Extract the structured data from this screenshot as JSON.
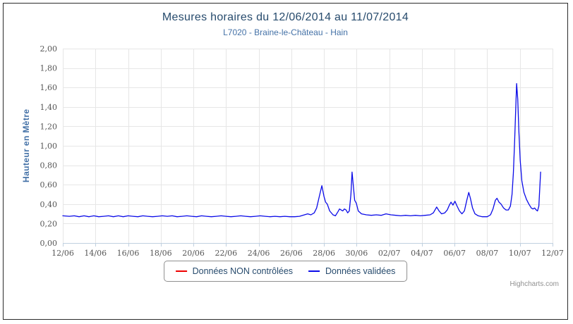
{
  "credits": "Highcharts.com",
  "colors": {
    "title": "#274b6d",
    "subtitle": "#4572a7",
    "axis_labels": "#555555",
    "gridline": "#e6e6e6",
    "axis_line": "#c0d0e0",
    "legend_border": "#909090",
    "frame_border": "#2b2b2b"
  },
  "chart_data": {
    "type": "line",
    "title": "Mesures horaires du 12/06/2014 au 11/07/2014",
    "subtitle": "L7020 - Braine-le-Château - Hain",
    "xlabel": "",
    "ylabel": "Hauteur en Mètre",
    "ylim": [
      0,
      2
    ],
    "x_range_days": [
      0,
      30
    ],
    "grid": true,
    "legend_position": "bottom-center",
    "y_ticks": [
      {
        "value": 0.0,
        "label": "0,00"
      },
      {
        "value": 0.2,
        "label": "0,20"
      },
      {
        "value": 0.4,
        "label": "0,40"
      },
      {
        "value": 0.6,
        "label": "0,60"
      },
      {
        "value": 0.8,
        "label": "0,80"
      },
      {
        "value": 1.0,
        "label": "1,00"
      },
      {
        "value": 1.2,
        "label": "1,20"
      },
      {
        "value": 1.4,
        "label": "1,40"
      },
      {
        "value": 1.6,
        "label": "1,60"
      },
      {
        "value": 1.8,
        "label": "1,80"
      },
      {
        "value": 2.0,
        "label": "2,00"
      }
    ],
    "x_ticks": [
      {
        "day": 0,
        "label": "12/06"
      },
      {
        "day": 2,
        "label": "14/06"
      },
      {
        "day": 4,
        "label": "16/06"
      },
      {
        "day": 6,
        "label": "18/06"
      },
      {
        "day": 8,
        "label": "20/06"
      },
      {
        "day": 10,
        "label": "22/06"
      },
      {
        "day": 12,
        "label": "24/06"
      },
      {
        "day": 14,
        "label": "26/06"
      },
      {
        "day": 16,
        "label": "28/06"
      },
      {
        "day": 18,
        "label": "30/06"
      },
      {
        "day": 20,
        "label": "02/07"
      },
      {
        "day": 22,
        "label": "04/07"
      },
      {
        "day": 24,
        "label": "06/07"
      },
      {
        "day": 26,
        "label": "08/07"
      },
      {
        "day": 28,
        "label": "10/07"
      },
      {
        "day": 30,
        "label": "12/07"
      }
    ],
    "series": [
      {
        "name": "Données NON contrôlées",
        "color": "#ee0000",
        "points": []
      },
      {
        "name": "Données validées",
        "color": "#0b0be8",
        "points": [
          [
            0,
            0.28
          ],
          [
            0.4,
            0.275
          ],
          [
            0.7,
            0.28
          ],
          [
            1,
            0.27
          ],
          [
            1.3,
            0.28
          ],
          [
            1.6,
            0.27
          ],
          [
            1.9,
            0.28
          ],
          [
            2.2,
            0.27
          ],
          [
            2.5,
            0.275
          ],
          [
            2.8,
            0.28
          ],
          [
            3.1,
            0.27
          ],
          [
            3.4,
            0.28
          ],
          [
            3.7,
            0.27
          ],
          [
            4,
            0.28
          ],
          [
            4.3,
            0.275
          ],
          [
            4.6,
            0.27
          ],
          [
            4.9,
            0.28
          ],
          [
            5.2,
            0.275
          ],
          [
            5.5,
            0.27
          ],
          [
            5.8,
            0.275
          ],
          [
            6.1,
            0.28
          ],
          [
            6.4,
            0.275
          ],
          [
            6.7,
            0.28
          ],
          [
            7,
            0.27
          ],
          [
            7.3,
            0.275
          ],
          [
            7.6,
            0.28
          ],
          [
            7.9,
            0.275
          ],
          [
            8.2,
            0.27
          ],
          [
            8.5,
            0.28
          ],
          [
            8.8,
            0.275
          ],
          [
            9.1,
            0.27
          ],
          [
            9.4,
            0.275
          ],
          [
            9.7,
            0.28
          ],
          [
            10,
            0.275
          ],
          [
            10.3,
            0.27
          ],
          [
            10.6,
            0.275
          ],
          [
            10.9,
            0.28
          ],
          [
            11.2,
            0.275
          ],
          [
            11.5,
            0.27
          ],
          [
            11.8,
            0.275
          ],
          [
            12.1,
            0.28
          ],
          [
            12.4,
            0.275
          ],
          [
            12.7,
            0.27
          ],
          [
            13,
            0.275
          ],
          [
            13.3,
            0.27
          ],
          [
            13.6,
            0.275
          ],
          [
            13.9,
            0.27
          ],
          [
            14.2,
            0.27
          ],
          [
            14.5,
            0.275
          ],
          [
            14.8,
            0.29
          ],
          [
            15,
            0.3
          ],
          [
            15.2,
            0.29
          ],
          [
            15.4,
            0.31
          ],
          [
            15.55,
            0.36
          ],
          [
            15.7,
            0.47
          ],
          [
            15.87,
            0.59
          ],
          [
            16,
            0.48
          ],
          [
            16.1,
            0.42
          ],
          [
            16.2,
            0.4
          ],
          [
            16.35,
            0.33
          ],
          [
            16.55,
            0.29
          ],
          [
            16.7,
            0.28
          ],
          [
            16.85,
            0.32
          ],
          [
            16.95,
            0.35
          ],
          [
            17.05,
            0.34
          ],
          [
            17.15,
            0.33
          ],
          [
            17.25,
            0.35
          ],
          [
            17.35,
            0.34
          ],
          [
            17.45,
            0.31
          ],
          [
            17.55,
            0.33
          ],
          [
            17.65,
            0.5
          ],
          [
            17.72,
            0.73
          ],
          [
            17.8,
            0.58
          ],
          [
            17.88,
            0.44
          ],
          [
            17.98,
            0.41
          ],
          [
            18.1,
            0.33
          ],
          [
            18.3,
            0.3
          ],
          [
            18.6,
            0.29
          ],
          [
            18.9,
            0.285
          ],
          [
            19.2,
            0.29
          ],
          [
            19.5,
            0.285
          ],
          [
            19.8,
            0.3
          ],
          [
            20.1,
            0.29
          ],
          [
            20.4,
            0.285
          ],
          [
            20.7,
            0.28
          ],
          [
            21,
            0.285
          ],
          [
            21.3,
            0.28
          ],
          [
            21.6,
            0.285
          ],
          [
            21.9,
            0.28
          ],
          [
            22.2,
            0.285
          ],
          [
            22.5,
            0.29
          ],
          [
            22.7,
            0.31
          ],
          [
            22.9,
            0.37
          ],
          [
            23.05,
            0.33
          ],
          [
            23.2,
            0.3
          ],
          [
            23.4,
            0.31
          ],
          [
            23.55,
            0.34
          ],
          [
            23.68,
            0.39
          ],
          [
            23.78,
            0.42
          ],
          [
            23.9,
            0.39
          ],
          [
            24.02,
            0.43
          ],
          [
            24.15,
            0.38
          ],
          [
            24.3,
            0.33
          ],
          [
            24.45,
            0.3
          ],
          [
            24.6,
            0.33
          ],
          [
            24.75,
            0.44
          ],
          [
            24.87,
            0.52
          ],
          [
            24.97,
            0.46
          ],
          [
            25.1,
            0.36
          ],
          [
            25.25,
            0.3
          ],
          [
            25.45,
            0.28
          ],
          [
            25.7,
            0.27
          ],
          [
            26,
            0.27
          ],
          [
            26.2,
            0.29
          ],
          [
            26.35,
            0.35
          ],
          [
            26.5,
            0.44
          ],
          [
            26.6,
            0.46
          ],
          [
            26.72,
            0.42
          ],
          [
            26.85,
            0.4
          ],
          [
            27,
            0.36
          ],
          [
            27.15,
            0.34
          ],
          [
            27.3,
            0.34
          ],
          [
            27.42,
            0.38
          ],
          [
            27.52,
            0.5
          ],
          [
            27.6,
            0.72
          ],
          [
            27.68,
            1.05
          ],
          [
            27.74,
            1.35
          ],
          [
            27.8,
            1.64
          ],
          [
            27.87,
            1.48
          ],
          [
            27.94,
            1.15
          ],
          [
            28.02,
            0.85
          ],
          [
            28.12,
            0.64
          ],
          [
            28.25,
            0.52
          ],
          [
            28.4,
            0.45
          ],
          [
            28.55,
            0.4
          ],
          [
            28.7,
            0.36
          ],
          [
            28.8,
            0.35
          ],
          [
            28.9,
            0.36
          ],
          [
            29,
            0.34
          ],
          [
            29.08,
            0.33
          ],
          [
            29.16,
            0.38
          ],
          [
            29.27,
            0.73
          ]
        ]
      }
    ]
  }
}
